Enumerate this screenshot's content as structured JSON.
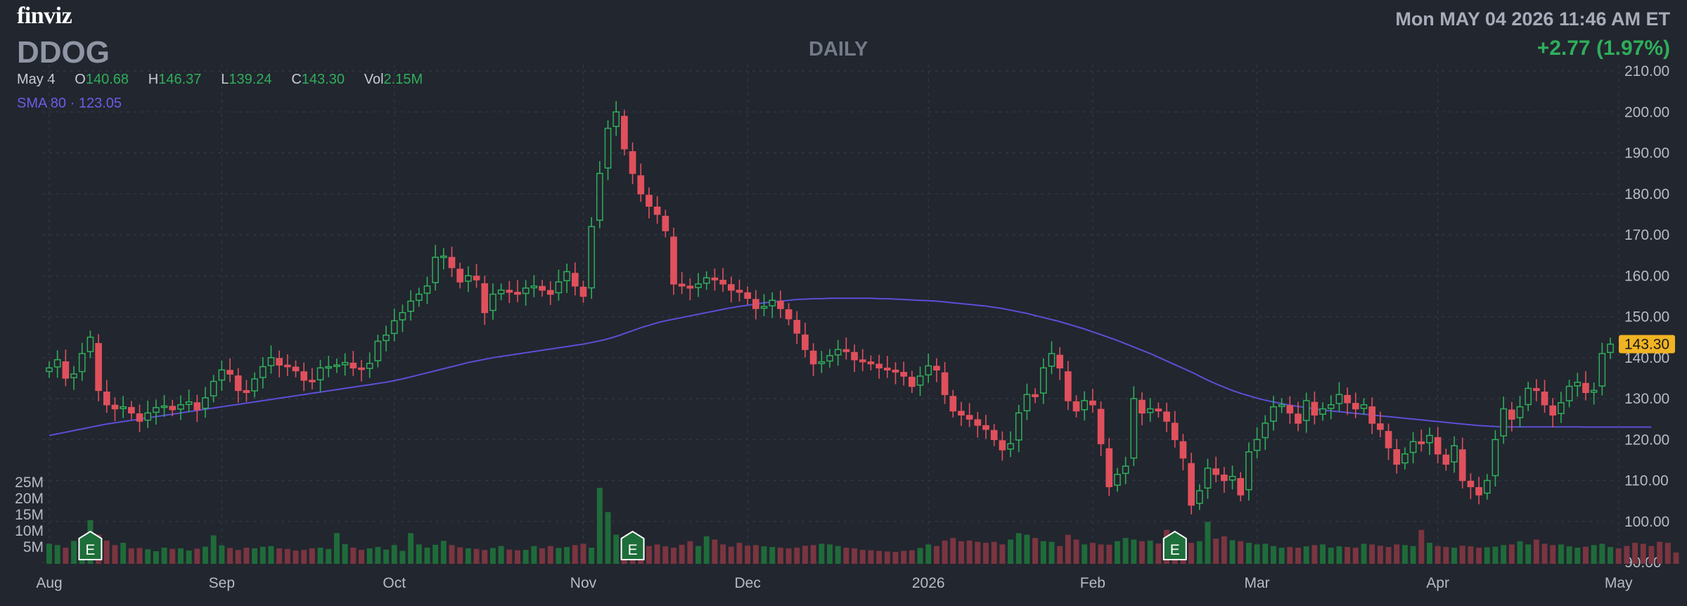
{
  "header": {
    "logo": "finviz",
    "ticker": "DDOG",
    "period": "DAILY",
    "datetime": "Mon MAY 04 2026 11:46 AM ET",
    "change": "+2.77 (1.97%)"
  },
  "ohlc": {
    "date": "May 4",
    "open_label": "O",
    "open": "140.68",
    "high_label": "H",
    "high": "146.37",
    "low_label": "L",
    "low": "139.24",
    "close_label": "C",
    "close": "143.30",
    "vol_label": "Vol",
    "vol": "2.15M"
  },
  "indicator": {
    "label": "SMA 80",
    "sep": "·",
    "value": "123.05"
  },
  "price_badge": "143.30",
  "colors": {
    "up": "#2fae5a",
    "down": "#e0505c",
    "sma": "#5b4fd6",
    "badge": "#f0b323",
    "grid": "#343946"
  },
  "chart_data": {
    "type": "candlestick",
    "title": "DDOG",
    "y_ticks": [
      90,
      100,
      110,
      120,
      130,
      140,
      150,
      160,
      170,
      180,
      190,
      200,
      210
    ],
    "y_tick_labels": [
      "90.00",
      "100.00",
      "110.00",
      "120.00",
      "130.00",
      "140.00",
      "150.00",
      "160.00",
      "170.00",
      "180.00",
      "190.00",
      "200.00",
      "210.00"
    ],
    "ylim": [
      90,
      210
    ],
    "volume_ticks": [
      "25M",
      "20M",
      "15M",
      "10M",
      "5M"
    ],
    "volume_tick_values": [
      25,
      20,
      15,
      10,
      5
    ],
    "x_ticks": [
      {
        "label": "Aug",
        "index": 0
      },
      {
        "label": "Sep",
        "index": 21
      },
      {
        "label": "Oct",
        "index": 42
      },
      {
        "label": "Nov",
        "index": 65
      },
      {
        "label": "Dec",
        "index": 85
      },
      {
        "label": "2026",
        "index": 107
      },
      {
        "label": "Feb",
        "index": 127
      },
      {
        "label": "Mar",
        "index": 147
      },
      {
        "label": "Apr",
        "index": 169
      },
      {
        "label": "May",
        "index": 191
      }
    ],
    "earnings_markers": [
      {
        "label": "E",
        "index": 5
      },
      {
        "label": "E",
        "index": 71
      },
      {
        "label": "E",
        "index": 137
      }
    ],
    "closes": [
      137.5,
      139.5,
      135.0,
      136.0,
      141.0,
      145.0,
      132.0,
      128.5,
      127.5,
      128.0,
      126.5,
      124.5,
      126.5,
      127.8,
      128.2,
      127.3,
      128.5,
      129.2,
      127.3,
      130.2,
      134.2,
      137.0,
      136.0,
      132.0,
      131.5,
      134.8,
      137.8,
      140.0,
      138.2,
      137.8,
      136.8,
      134.5,
      134.2,
      137.5,
      137.8,
      138.2,
      138.8,
      137.5,
      137.2,
      138.6,
      144.0,
      145.5,
      149.0,
      151.0,
      153.8,
      155.5,
      157.5,
      164.5,
      164.8,
      162.0,
      158.5,
      160.0,
      159.0,
      151.0,
      155.5,
      156.5,
      156.0,
      155.5,
      157.0,
      157.5,
      156.5,
      155.5,
      158.5,
      161.0,
      157.5,
      155.0,
      172.0,
      185.0,
      196.0,
      200.0,
      191.0,
      185.0,
      180.0,
      177.0,
      175.0,
      171.0,
      158.0,
      157.5,
      157.0,
      158.0,
      159.5,
      159.0,
      158.0,
      156.5,
      156.0,
      154.5,
      152.0,
      152.5,
      154.0,
      152.0,
      149.5,
      146.0,
      142.0,
      138.5,
      139.0,
      140.5,
      142.0,
      141.5,
      139.5,
      139.0,
      138.5,
      137.5,
      137.0,
      136.5,
      135.5,
      133.0,
      135.5,
      138.0,
      137.0,
      131.0,
      127.0,
      126.0,
      125.0,
      123.5,
      122.5,
      120.0,
      117.5,
      119.0,
      126.5,
      131.0,
      130.5,
      137.5,
      141.0,
      137.5,
      129.5,
      127.0,
      129.5,
      128.5,
      119.0,
      108.5,
      111.5,
      113.5,
      130.0,
      126.5,
      127.5,
      127.0,
      124.5,
      120.0,
      115.5,
      104.0,
      107.5,
      113.0,
      111.5,
      110.0,
      111.0,
      106.5,
      117.0,
      120.0,
      124.0,
      128.0,
      128.5,
      126.5,
      124.0,
      129.5,
      126.0,
      127.5,
      128.5,
      131.0,
      129.0,
      127.5,
      128.5,
      124.0,
      122.5,
      118.0,
      114.0,
      116.5,
      119.5,
      119.0,
      121.0,
      116.5,
      114.0,
      118.5,
      110.0,
      108.5,
      106.5,
      110.0,
      120.0,
      127.5,
      125.0,
      128.0,
      132.5,
      132.0,
      128.5,
      126.0,
      129.0,
      133.0,
      134.0,
      131.5,
      132.0,
      141.0,
      143.3
    ],
    "sma_values": [
      121.0,
      121.4,
      121.8,
      122.2,
      122.6,
      123.0,
      123.4,
      123.8,
      124.1,
      124.4,
      124.7,
      125.0,
      125.3,
      125.6,
      125.9,
      126.2,
      126.5,
      126.8,
      127.1,
      127.4,
      127.7,
      128.0,
      128.3,
      128.6,
      128.9,
      129.2,
      129.5,
      129.8,
      130.1,
      130.4,
      130.7,
      131.0,
      131.3,
      131.6,
      131.9,
      132.2,
      132.5,
      132.8,
      133.1,
      133.4,
      133.7,
      134.0,
      134.4,
      134.8,
      135.3,
      135.8,
      136.3,
      136.8,
      137.3,
      137.8,
      138.3,
      138.8,
      139.2,
      139.6,
      140.0,
      140.3,
      140.6,
      140.9,
      141.2,
      141.5,
      141.8,
      142.1,
      142.4,
      142.7,
      143.0,
      143.3,
      143.7,
      144.1,
      144.6,
      145.2,
      145.9,
      146.6,
      147.3,
      147.9,
      148.5,
      149.0,
      149.4,
      149.8,
      150.2,
      150.6,
      151.0,
      151.4,
      151.8,
      152.2,
      152.5,
      152.8,
      153.1,
      153.4,
      153.6,
      153.8,
      154.0,
      154.2,
      154.3,
      154.4,
      154.4,
      154.5,
      154.5,
      154.5,
      154.5,
      154.5,
      154.5,
      154.4,
      154.4,
      154.3,
      154.2,
      154.1,
      154.0,
      153.9,
      153.8,
      153.6,
      153.4,
      153.2,
      153.0,
      152.8,
      152.6,
      152.3,
      152.0,
      151.6,
      151.2,
      150.8,
      150.3,
      149.8,
      149.3,
      148.8,
      148.2,
      147.6,
      147.0,
      146.3,
      145.6,
      144.9,
      144.2,
      143.4,
      142.6,
      141.8,
      141.0,
      140.1,
      139.2,
      138.3,
      137.4,
      136.5,
      135.5,
      134.5,
      133.6,
      132.8,
      132.0,
      131.3,
      130.7,
      130.1,
      129.6,
      129.2,
      128.8,
      128.4,
      128.1,
      127.8,
      127.5,
      127.2,
      127.0,
      126.8,
      126.6,
      126.4,
      126.2,
      126.0,
      125.8,
      125.6,
      125.4,
      125.2,
      125.0,
      124.8,
      124.6,
      124.4,
      124.2,
      124.0,
      123.8,
      123.6,
      123.4,
      123.3,
      123.2,
      123.1,
      123.1,
      123.1,
      123.1,
      123.1,
      123.1,
      123.1,
      123.1,
      123.1,
      123.1,
      123.05,
      123.05,
      123.05,
      123.05,
      123.05,
      123.05,
      123.05,
      123.05,
      123.05
    ],
    "volumes": [
      6.2,
      5.8,
      5.0,
      7.1,
      5.6,
      13.5,
      9.0,
      7.2,
      5.8,
      6.5,
      4.8,
      4.9,
      4.5,
      3.9,
      5.0,
      4.6,
      4.8,
      4.1,
      4.7,
      5.3,
      8.8,
      5.7,
      4.9,
      4.3,
      5.0,
      4.8,
      5.3,
      5.5,
      4.8,
      4.6,
      4.1,
      4.3,
      4.8,
      5.0,
      4.6,
      9.5,
      6.1,
      5.0,
      4.3,
      4.8,
      5.2,
      4.4,
      5.8,
      4.0,
      9.5,
      6.0,
      5.0,
      5.9,
      7.1,
      5.8,
      5.1,
      4.8,
      4.6,
      4.3,
      4.9,
      5.5,
      4.4,
      4.2,
      4.3,
      5.5,
      4.8,
      5.5,
      4.9,
      5.2,
      5.8,
      6.2,
      5.0,
      23.5,
      16.0,
      9.0,
      7.5,
      7.2,
      6.5,
      5.5,
      6.0,
      5.4,
      5.0,
      5.9,
      7.0,
      5.5,
      8.5,
      7.5,
      6.0,
      5.3,
      6.5,
      5.6,
      5.8,
      5.4,
      5.2,
      5.0,
      4.8,
      5.0,
      5.6,
      5.8,
      6.2,
      6.0,
      5.5,
      5.0,
      4.8,
      4.3,
      4.2,
      4.0,
      3.8,
      3.7,
      4.0,
      4.2,
      4.9,
      6.0,
      5.5,
      7.2,
      8.0,
      7.0,
      7.2,
      6.8,
      6.5,
      6.8,
      6.0,
      7.5,
      9.5,
      9.0,
      8.0,
      7.0,
      6.8,
      5.5,
      9.0,
      7.5,
      6.0,
      6.5,
      6.0,
      5.9,
      7.0,
      8.0,
      7.5,
      7.0,
      7.2,
      6.3,
      10.5,
      7.8,
      5.5,
      6.5,
      7.0,
      13.0,
      7.8,
      8.5,
      7.3,
      7.0,
      6.5,
      6.0,
      6.2,
      5.5,
      5.0,
      5.2,
      5.0,
      5.4,
      5.8,
      6.0,
      5.0,
      5.4,
      5.2,
      5.0,
      6.2,
      6.0,
      5.6,
      5.2,
      6.0,
      5.8,
      5.5,
      10.5,
      6.5,
      5.5,
      5.2,
      5.0,
      5.6,
      5.4,
      5.0,
      5.1,
      5.3,
      5.8,
      6.0,
      7.0,
      6.0,
      7.5,
      6.2,
      5.8,
      6.0,
      5.4,
      5.0,
      5.3,
      5.8,
      6.2,
      5.2,
      4.8,
      5.5,
      6.5,
      6.2,
      5.5,
      6.8,
      6.5,
      3.5
    ]
  }
}
